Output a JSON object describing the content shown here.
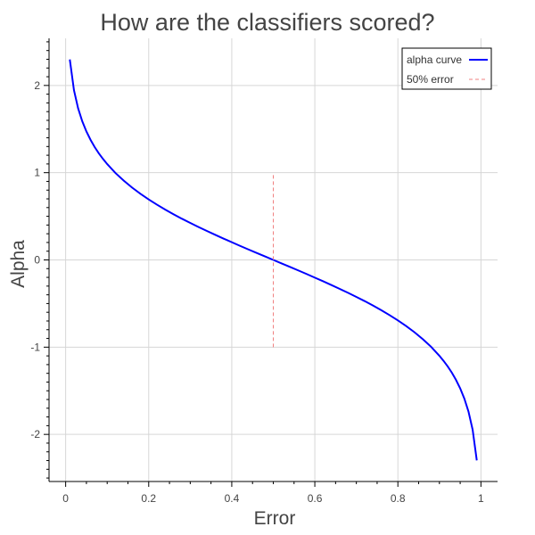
{
  "chart_data": {
    "type": "line",
    "title": "How are the classifiers scored?",
    "xlabel": "Error",
    "ylabel": "Alpha",
    "xlim": [
      -0.04,
      1.04
    ],
    "ylim": [
      -2.54,
      2.54
    ],
    "x_ticks": [
      0,
      0.2,
      0.4,
      0.6,
      0.8,
      1
    ],
    "x_tick_labels": [
      "0",
      "0.2",
      "0.4",
      "0.6",
      "0.8",
      "1"
    ],
    "y_ticks": [
      -2,
      -1,
      0,
      1,
      2
    ],
    "y_tick_labels": [
      "-2",
      "-1",
      "0",
      "1",
      "2"
    ],
    "grid": true,
    "legend_position": "top-right",
    "series": [
      {
        "name": "alpha curve",
        "color": "#0000ff",
        "style": "solid",
        "x": [
          0.01,
          0.02,
          0.03,
          0.04,
          0.05,
          0.06,
          0.07,
          0.08,
          0.09,
          0.1,
          0.12,
          0.14,
          0.16,
          0.18,
          0.2,
          0.22,
          0.24,
          0.26,
          0.28,
          0.3,
          0.32,
          0.34,
          0.36,
          0.38,
          0.4,
          0.42,
          0.44,
          0.46,
          0.48,
          0.5,
          0.52,
          0.54,
          0.56,
          0.58,
          0.6,
          0.62,
          0.64,
          0.66,
          0.68,
          0.7,
          0.72,
          0.74,
          0.76,
          0.78,
          0.8,
          0.82,
          0.84,
          0.86,
          0.88,
          0.9,
          0.91,
          0.92,
          0.93,
          0.94,
          0.95,
          0.96,
          0.97,
          0.98,
          0.99
        ],
        "y": [
          2.298,
          1.946,
          1.738,
          1.589,
          1.472,
          1.376,
          1.293,
          1.221,
          1.157,
          1.099,
          0.996,
          0.908,
          0.829,
          0.758,
          0.693,
          0.633,
          0.576,
          0.523,
          0.472,
          0.424,
          0.377,
          0.332,
          0.288,
          0.245,
          0.203,
          0.161,
          0.12,
          0.08,
          0.04,
          0.0,
          -0.04,
          -0.08,
          -0.12,
          -0.161,
          -0.203,
          -0.245,
          -0.288,
          -0.332,
          -0.377,
          -0.424,
          -0.472,
          -0.523,
          -0.576,
          -0.633,
          -0.693,
          -0.758,
          -0.829,
          -0.908,
          -0.996,
          -1.099,
          -1.157,
          -1.221,
          -1.293,
          -1.376,
          -1.472,
          -1.589,
          -1.738,
          -1.946,
          -2.298
        ]
      },
      {
        "name": "50% error",
        "color": "#f08080",
        "style": "dashed",
        "x": [
          0.5,
          0.5
        ],
        "y": [
          -1,
          1
        ]
      }
    ]
  }
}
